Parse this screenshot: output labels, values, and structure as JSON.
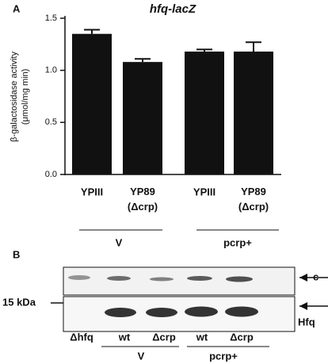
{
  "chart_data": {
    "type": "bar",
    "panel_label": "A",
    "title": "hfq-lacZ",
    "y_label": [
      "β-galactosidase activity",
      "(μmol/mg min)"
    ],
    "categories": [
      "YPIII",
      "YP89\n(Δcrp)",
      "YPIII",
      "YP89\n(Δcrp)"
    ],
    "values": [
      1.35,
      1.08,
      1.18,
      1.18
    ],
    "errors": [
      0.04,
      0.03,
      0.02,
      0.09
    ],
    "color": "#111111",
    "ylim": [
      0,
      1.5
    ],
    "yticks": [
      {
        "value": 0,
        "label": "0.0"
      },
      0.5,
      {
        "value": 1,
        "label": "1.0"
      },
      1.5
    ],
    "groups": [
      "V",
      "pcrp+"
    ]
  },
  "blot": {
    "panel_label": "B",
    "marker": "15 kDa",
    "bands": [
      "c",
      "Hfq"
    ],
    "lanes": [
      "Δhfq",
      "wt",
      "Δcrp",
      "wt",
      "Δcrp"
    ],
    "groups": [
      "V",
      "pcrp+"
    ]
  }
}
